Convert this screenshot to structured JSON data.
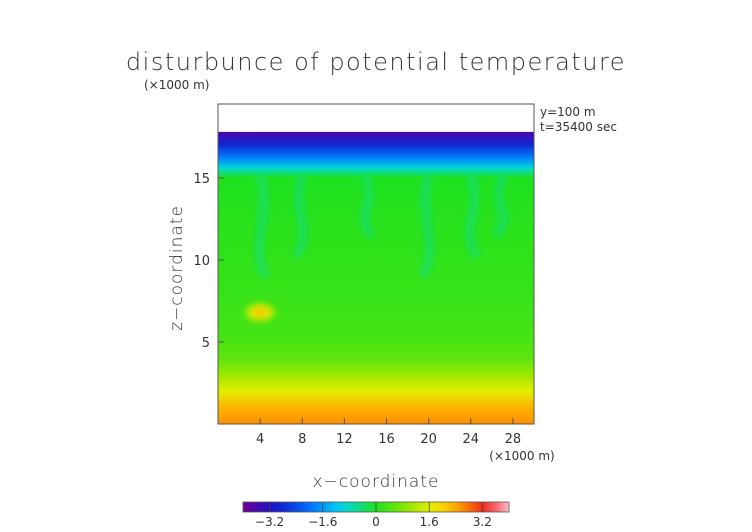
{
  "chart_data": {
    "type": "heatmap",
    "title": "disturbunce of potential temperature",
    "units_note": "(×1000 m)",
    "annotations": [
      "y=100 m",
      "t=35400 sec"
    ],
    "xlabel": "x−coordinate",
    "ylabel": "z−coordinate",
    "x_units": "(×1000 m)",
    "xlim": [
      0,
      30
    ],
    "ylim": [
      0,
      19.5
    ],
    "x_ticks": [
      4,
      8,
      12,
      16,
      20,
      24,
      28
    ],
    "y_ticks": [
      5,
      10,
      15
    ],
    "colorbar": {
      "range": [
        -4.0,
        4.0
      ],
      "ticks": [
        -3.2,
        -1.6,
        0,
        1.6,
        3.2
      ],
      "tick_labels": [
        "−3.2",
        "−1.6",
        "0",
        "1.6",
        "3.2"
      ]
    },
    "field_description": {
      "data_top_z": 17.8,
      "rows": [
        {
          "z": 0.0,
          "value": 2.6
        },
        {
          "z": 1.0,
          "value": 2.3
        },
        {
          "z": 2.0,
          "value": 1.6
        },
        {
          "z": 3.0,
          "value": 1.0
        },
        {
          "z": 4.0,
          "value": 0.5
        },
        {
          "z": 5.5,
          "value": 0.3
        },
        {
          "z": 8.0,
          "value": 0.2
        },
        {
          "z": 12.0,
          "value": 0.1
        },
        {
          "z": 15.0,
          "value": 0.0
        },
        {
          "z": 15.6,
          "value": -0.9
        },
        {
          "z": 16.2,
          "value": -1.8
        },
        {
          "z": 17.0,
          "value": -2.8
        },
        {
          "z": 17.8,
          "value": -3.6
        }
      ],
      "plumes_x": [
        4,
        8,
        14,
        20,
        24,
        27
      ],
      "hot_spot": {
        "x": 4,
        "z": 6.8,
        "value": 2.0
      }
    }
  }
}
